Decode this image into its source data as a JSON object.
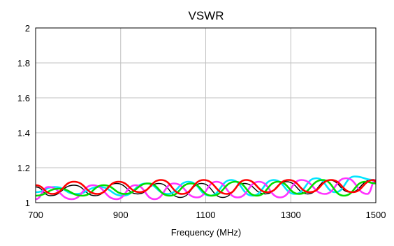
{
  "chart_data": {
    "type": "line",
    "title": "VSWR",
    "xlabel": "Frequency  (MHz)",
    "ylabel": "",
    "xlim": [
      700,
      1500
    ],
    "ylim": [
      1,
      2
    ],
    "x_ticks": [
      "700",
      "900",
      "1100",
      "1300",
      "1500"
    ],
    "y_ticks": [
      "1",
      "1.2",
      "1.4",
      "1.6",
      "1.8",
      "2"
    ],
    "grid": true,
    "legend": "none",
    "series": [
      {
        "color": "#000000",
        "x": [
          700,
          735,
          790,
          840,
          890,
          940,
          990,
          1040,
          1090,
          1140,
          1190,
          1240,
          1290,
          1340,
          1390,
          1440,
          1490,
          1500
        ],
        "values": [
          1.09,
          1.04,
          1.1,
          1.04,
          1.11,
          1.05,
          1.11,
          1.03,
          1.11,
          1.03,
          1.11,
          1.05,
          1.12,
          1.05,
          1.13,
          1.06,
          1.13,
          1.11
        ]
      },
      {
        "color": "#00e5ff",
        "x": [
          700,
          745,
          795,
          850,
          905,
          960,
          1010,
          1060,
          1110,
          1160,
          1210,
          1260,
          1310,
          1360,
          1405,
          1450,
          1495,
          1500
        ],
        "values": [
          1.06,
          1.09,
          1.05,
          1.09,
          1.04,
          1.11,
          1.05,
          1.12,
          1.04,
          1.13,
          1.04,
          1.13,
          1.05,
          1.14,
          1.06,
          1.15,
          1.13,
          1.12
        ]
      },
      {
        "color": "#ff33ff",
        "x": [
          700,
          730,
          785,
          835,
          890,
          935,
          980,
          1025,
          1080,
          1125,
          1175,
          1225,
          1275,
          1325,
          1380,
          1430,
          1480,
          1500
        ],
        "values": [
          1.02,
          1.09,
          1.02,
          1.1,
          1.02,
          1.1,
          1.02,
          1.11,
          1.03,
          1.12,
          1.03,
          1.12,
          1.03,
          1.13,
          1.05,
          1.14,
          1.05,
          1.13
        ]
      },
      {
        "color": "#00dd00",
        "x": [
          700,
          755,
          810,
          860,
          910,
          965,
          1015,
          1065,
          1115,
          1170,
          1220,
          1270,
          1320,
          1375,
          1425,
          1475,
          1500
        ],
        "values": [
          1.04,
          1.08,
          1.04,
          1.1,
          1.05,
          1.11,
          1.04,
          1.11,
          1.04,
          1.12,
          1.04,
          1.12,
          1.05,
          1.13,
          1.04,
          1.12,
          1.11
        ]
      },
      {
        "color": "#ff0000",
        "x": [
          700,
          740,
          790,
          845,
          895,
          945,
          995,
          1045,
          1095,
          1150,
          1195,
          1245,
          1295,
          1345,
          1395,
          1445,
          1495,
          1500
        ],
        "values": [
          1.1,
          1.05,
          1.12,
          1.05,
          1.12,
          1.06,
          1.13,
          1.05,
          1.13,
          1.05,
          1.13,
          1.06,
          1.13,
          1.06,
          1.13,
          1.06,
          1.13,
          1.12
        ]
      }
    ]
  }
}
